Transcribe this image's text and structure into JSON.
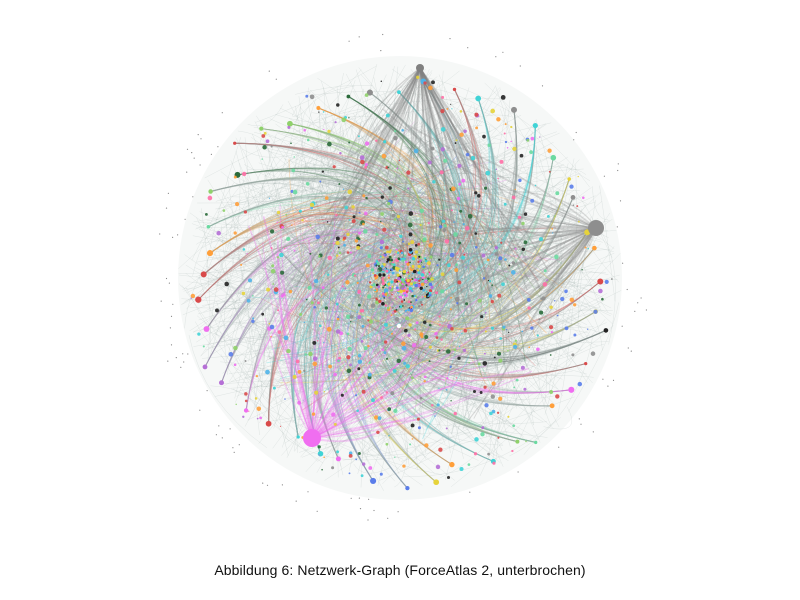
{
  "figure": {
    "caption": "Abbildung 6: Netzwerk-Graph (ForceAtlas 2, unterbrochen)"
  },
  "graph": {
    "layout": "ForceAtlas 2",
    "state": "unterbrochen",
    "background": "#ffffff",
    "edge_color": "#9aa8a6",
    "spinner_color": "#9aa8a6",
    "hub_nodes": [
      {
        "color": "#f06ef0",
        "role": "large-hub"
      },
      {
        "color": "#8e8e8e",
        "role": "large-hub"
      },
      {
        "color": "#808080",
        "role": "top-hub"
      }
    ],
    "node_palette": [
      "#8fd16a",
      "#3fd3d6",
      "#f06ef0",
      "#8e8e8e",
      "#ff9f3a",
      "#2a6a3a",
      "#d94a4a",
      "#5a7dea",
      "#6ad9a0",
      "#b56fd6",
      "#e6d33a",
      "#222222",
      "#4fb3e8",
      "#ff6fa6"
    ]
  }
}
